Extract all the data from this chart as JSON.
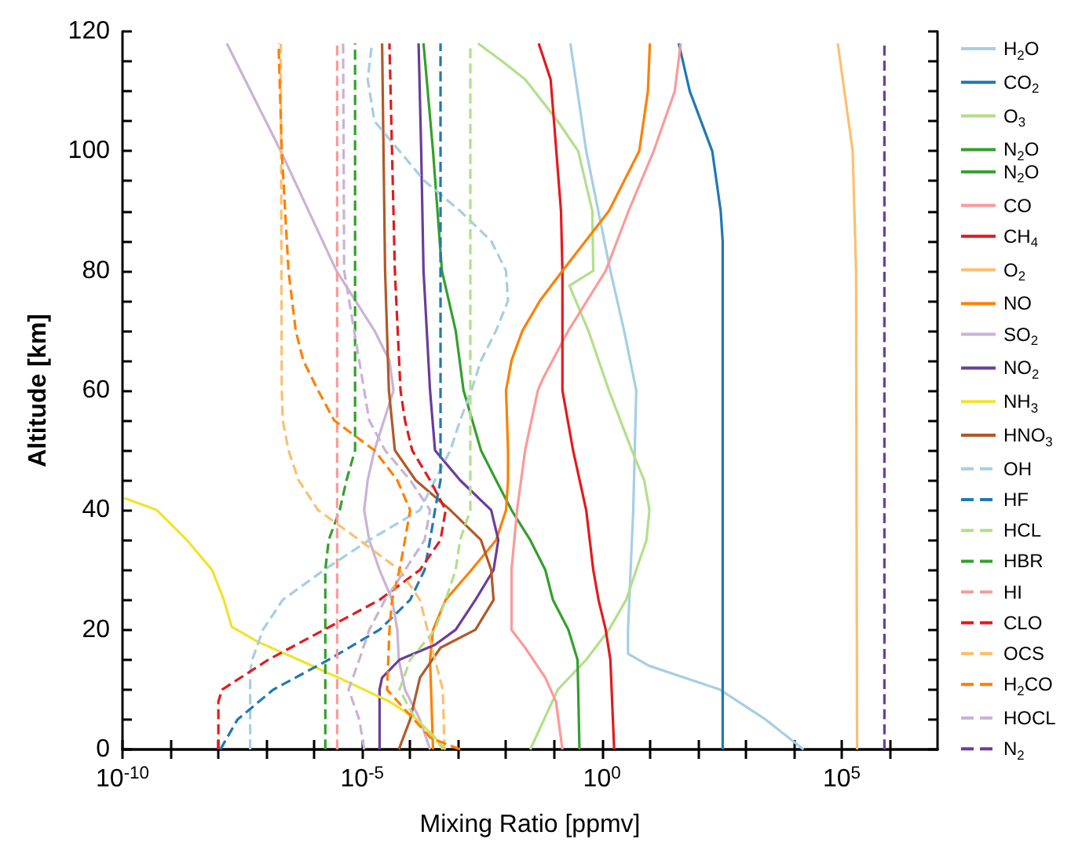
{
  "chart_data": {
    "type": "line",
    "xlabel": "Mixing Ratio [ppmv]",
    "ylabel": "Altitude [km]",
    "log": "x",
    "grid": false,
    "legend": "right",
    "xlim": [
      1e-10,
      10000000.0
    ],
    "ylim": [
      0,
      120
    ],
    "xticks": [
      {
        "value": 1e-10,
        "label": "10$^{-10}$"
      },
      {
        "value": 1e-09,
        "label": null
      },
      {
        "value": 1e-08,
        "label": null
      },
      {
        "value": 1e-07,
        "label": null
      },
      {
        "value": 1e-06,
        "label": null
      },
      {
        "value": 1e-05,
        "label": "10$^{-5}$"
      },
      {
        "value": 0.0001,
        "label": null
      },
      {
        "value": 0.001,
        "label": null
      },
      {
        "value": 0.01,
        "label": null
      },
      {
        "value": 0.1,
        "label": null
      },
      {
        "value": 1,
        "label": "10$^{0}$"
      },
      {
        "value": 10,
        "label": null
      },
      {
        "value": 100,
        "label": null
      },
      {
        "value": 1000,
        "label": null
      },
      {
        "value": 10000,
        "label": null
      },
      {
        "value": 100000,
        "label": "10$^{5}$"
      },
      {
        "value": 1000000,
        "label": null
      }
    ],
    "yticks": [
      0,
      {
        "value": 5,
        "label": null
      },
      {
        "value": 10,
        "label": null
      },
      {
        "value": 15,
        "label": null
      },
      20,
      {
        "value": 25,
        "label": null
      },
      {
        "value": 30,
        "label": null
      },
      {
        "value": 35,
        "label": null
      },
      40,
      {
        "value": 45,
        "label": null
      },
      {
        "value": 50,
        "label": null
      },
      {
        "value": 55,
        "label": null
      },
      60,
      {
        "value": 65,
        "label": null
      },
      {
        "value": 70,
        "label": null
      },
      {
        "value": 75,
        "label": null
      },
      80,
      {
        "value": 85,
        "label": null
      },
      {
        "value": 90,
        "label": null
      },
      {
        "value": 95,
        "label": null
      },
      100,
      {
        "value": 105,
        "label": null
      },
      {
        "value": 110,
        "label": null
      },
      {
        "value": 115,
        "label": null
      },
      120
    ],
    "series": [
      {
        "name": "H$_{2}$O",
        "color": "#a6cee3",
        "line_style": "solid",
        "values": [
          0,
          5,
          10,
          12,
          14,
          16,
          20,
          40,
          60,
          70,
          80,
          100,
          118
        ],
        "x": [
          16000.0,
          2600.0,
          290,
          52,
          9.5,
          3.5,
          3.5,
          4.5,
          5.2,
          2.9,
          1.5,
          0.47,
          0.22
        ]
      },
      {
        "name": "CO$_{2}$",
        "color": "#1f78b4",
        "line_style": "solid",
        "values": [
          0,
          85,
          90,
          100,
          110,
          118
        ],
        "x": [
          330,
          330,
          300,
          200,
          68,
          40
        ]
      },
      {
        "name": "O$_{3}$",
        "color": "#b2df8a",
        "line_style": "solid",
        "values": [
          0,
          10,
          15,
          20,
          25,
          30,
          35,
          40,
          45,
          50,
          60,
          70,
          77.5,
          80,
          90,
          100,
          105,
          112,
          115,
          118
        ],
        "x": [
          0.032,
          0.12,
          0.47,
          1.4,
          3.2,
          5.2,
          8.5,
          9.8,
          7.6,
          4.2,
          1.4,
          0.52,
          0.21,
          0.66,
          0.63,
          0.32,
          0.12,
          0.025,
          0.0083,
          0.0026
        ]
      },
      {
        "name": "N$_{2}$O",
        "color": "#33a02c",
        "line_style": "solid",
        "values": [
          0,
          10,
          15,
          20,
          25,
          30,
          35,
          40,
          45,
          50,
          60,
          70,
          80,
          100,
          118
        ],
        "x": [
          0.34,
          0.32,
          0.31,
          0.2,
          0.095,
          0.066,
          0.032,
          0.013,
          0.0062,
          0.003,
          0.0013,
          0.00089,
          0.00046,
          0.0003,
          0.00019
        ]
      },
      {
        "name": "N$_{2}$O",
        "color": "#33a02c",
        "line_style": "solid",
        "values": [
          null
        ],
        "x": [
          null
        ]
      },
      {
        "name": "CO",
        "color": "#fb9a99",
        "line_style": "solid",
        "values": [
          0,
          8,
          12,
          17,
          20,
          30,
          40,
          50,
          60,
          62,
          70,
          80,
          90,
          100,
          110,
          118
        ],
        "x": [
          0.15,
          0.11,
          0.066,
          0.025,
          0.013,
          0.013,
          0.017,
          0.025,
          0.046,
          0.059,
          0.2,
          1.2,
          3.6,
          12,
          33,
          44
        ]
      },
      {
        "name": "CH$_{4}$",
        "color": "#e31a1c",
        "line_style": "solid",
        "values": [
          0,
          15,
          20,
          25,
          30,
          40,
          50,
          60,
          80,
          90,
          105,
          112,
          118
        ],
        "x": [
          1.8,
          1.5,
          1.2,
          0.85,
          0.66,
          0.47,
          0.25,
          0.15,
          0.15,
          0.14,
          0.1,
          0.085,
          0.048
        ]
      },
      {
        "name": "O$_{2}$",
        "color": "#fdbf6f",
        "line_style": "solid",
        "values": [
          0,
          80,
          100,
          118
        ],
        "x": [
          210000.0,
          200000.0,
          170000.0,
          83000.0
        ]
      },
      {
        "name": "NO",
        "color": "#ff7f00",
        "line_style": "solid",
        "values": [
          0,
          15,
          20,
          25,
          30,
          35,
          40,
          45,
          50,
          60,
          65,
          70,
          75,
          80,
          90,
          100,
          110,
          118
        ],
        "x": [
          0.0003,
          0.00026,
          0.0003,
          0.00055,
          0.0019,
          0.0062,
          0.01,
          0.011,
          0.011,
          0.01,
          0.013,
          0.022,
          0.051,
          0.15,
          1.4,
          6.0,
          9.1,
          10
        ]
      },
      {
        "name": "SO$_{2}$",
        "color": "#cab2d6",
        "line_style": "solid",
        "values": [
          0,
          5,
          10,
          15,
          20,
          25,
          30,
          35,
          40,
          45,
          50,
          60,
          65,
          70,
          80,
          100,
          118
        ],
        "x": [
          0.00026,
          0.00016,
          7.8e-05,
          5.8e-05,
          5.4e-05,
          4.2e-05,
          2.3e-05,
          1.4e-05,
          1.1e-05,
          1.3e-05,
          1.8e-05,
          4.5e-05,
          3.7e-05,
          1.8e-05,
          2.9e-06,
          2e-07,
          1.5e-08
        ]
      },
      {
        "name": "NO$_{2}$",
        "color": "#6a3d9a",
        "line_style": "solid",
        "values": [
          0,
          10,
          12,
          15,
          17.5,
          20,
          25,
          30,
          35,
          40,
          45,
          50,
          60,
          80,
          100,
          118
        ],
        "x": [
          2.3e-05,
          2.3e-05,
          2.6e-05,
          6e-05,
          0.00033,
          0.00089,
          0.0023,
          0.0055,
          0.0069,
          0.0049,
          0.0011,
          0.00033,
          0.00026,
          0.00019,
          0.00017,
          0.00015
        ]
      },
      {
        "name": "NH$_{3}$",
        "color": "#f2e22e",
        "line_style": "solid",
        "values": [
          0,
          2,
          5,
          8,
          12,
          15,
          18,
          20.5,
          25,
          30,
          35,
          40,
          42
        ],
        "x": [
          0.00048,
          0.00033,
          0.00014,
          3.7e-05,
          3.2e-06,
          4.7e-07,
          6.6e-08,
          1.9e-08,
          1.3e-08,
          7.4e-09,
          2.2e-09,
          5.2e-10,
          1.1e-10
        ]
      },
      {
        "name": "HNO$_{3}$",
        "color": "#b15928",
        "line_style": "solid",
        "values": [
          0,
          5,
          12,
          17,
          20,
          25,
          30,
          35,
          40,
          45,
          50,
          60,
          80,
          118
        ],
        "x": [
          5.8e-05,
          0.0001,
          0.00016,
          0.00043,
          0.0023,
          0.0055,
          0.0049,
          0.003,
          0.00069,
          0.00013,
          4.8e-05,
          3.6e-05,
          3e-05,
          2.6e-05
        ]
      },
      {
        "name": "OH",
        "color": "#a6cee3",
        "line_style": "dashed",
        "values": [
          0,
          13,
          15,
          20,
          25,
          30,
          35,
          40,
          45,
          50,
          55,
          60,
          65,
          70,
          75,
          80,
          85,
          90,
          95,
          100,
          105,
          112,
          118
        ],
        "x": [
          4.6e-08,
          4.6e-08,
          5.1e-08,
          8.5e-08,
          2.2e-07,
          1.6e-06,
          1.4e-05,
          0.00016,
          0.00033,
          0.00069,
          0.0011,
          0.0019,
          0.003,
          0.0062,
          0.011,
          0.01,
          0.0049,
          0.0011,
          0.0002,
          6e-05,
          1.8e-05,
          1.3e-05,
          1.6e-05
        ]
      },
      {
        "name": "HF",
        "color": "#1f78b4",
        "line_style": "dashed",
        "values": [
          0,
          5,
          10,
          15,
          20,
          25,
          30,
          35,
          40,
          45,
          118
        ],
        "x": [
          1.1e-08,
          2.5e-08,
          1.4e-07,
          2e-06,
          2.3e-05,
          0.0001,
          0.0002,
          0.00026,
          0.00033,
          0.00043,
          0.00043
        ]
      },
      {
        "name": "HCL",
        "color": "#b2df8a",
        "line_style": "dashed",
        "values": [
          0,
          5,
          10,
          15,
          20,
          25,
          30,
          35,
          40,
          118
        ],
        "x": [
          0.00055,
          0.00013,
          6e-05,
          0.0001,
          0.00033,
          0.00055,
          0.00089,
          0.0011,
          0.0018,
          0.0018
        ]
      },
      {
        "name": "HBR",
        "color": "#33a02c",
        "line_style": "dashed",
        "values": [
          0,
          30,
          35,
          40,
          45,
          50,
          118
        ],
        "x": [
          1.7e-06,
          1.7e-06,
          2e-06,
          3.4e-06,
          4.7e-06,
          7.1e-06,
          7.1e-06
        ]
      },
      {
        "name": "HI",
        "color": "#fb9a99",
        "line_style": "dashed",
        "values": [
          0,
          118
        ],
        "x": [
          3e-06,
          3e-06
        ]
      },
      {
        "name": "CLO",
        "color": "#e31a1c",
        "line_style": "dashed",
        "values": [
          0,
          8,
          10,
          15,
          20,
          25,
          30,
          35,
          40,
          45,
          50,
          55,
          60,
          80,
          118
        ],
        "x": [
          1e-08,
          1e-08,
          1.2e-08,
          1.1e-07,
          1.6e-06,
          2.3e-05,
          0.00016,
          0.00043,
          0.00055,
          0.00026,
          0.00011,
          7.8e-05,
          6.3e-05,
          4.8e-05,
          3.7e-05
        ]
      },
      {
        "name": "OCS",
        "color": "#fdbf6f",
        "line_style": "dashed",
        "values": [
          0,
          10,
          15,
          20,
          25,
          30,
          35,
          40,
          45,
          50,
          55,
          60,
          118
        ],
        "x": [
          0.00052,
          0.00048,
          0.00033,
          0.00023,
          0.00016,
          6e-05,
          8.7e-06,
          1.2e-06,
          4.7e-07,
          2.9e-07,
          2.2e-07,
          2.1e-07,
          2e-07
        ]
      },
      {
        "name": "H$_{2}$CO",
        "color": "#ff7f00",
        "line_style": "dashed",
        "values": [
          0,
          2,
          10,
          20,
          25,
          30,
          35,
          40,
          45,
          50,
          55,
          60,
          65,
          70,
          80,
          100,
          118
        ],
        "x": [
          0.0011,
          0.00026,
          3.3e-05,
          3.7e-05,
          4.2e-05,
          6e-05,
          7.8e-05,
          0.0001,
          5.4e-05,
          1.8e-05,
          2.6e-06,
          1.2e-06,
          5.9e-07,
          4.1e-07,
          2.9e-07,
          2.1e-07,
          1.8e-07
        ]
      },
      {
        "name": "HOCL",
        "color": "#cab2d6",
        "line_style": "dashed",
        "values": [
          0,
          5,
          10,
          15,
          20,
          25,
          30,
          35,
          40,
          45,
          50,
          55,
          60,
          80,
          118
        ],
        "x": [
          1.1e-05,
          8.7e-06,
          5.2e-06,
          8.7e-06,
          1.4e-05,
          3e-05,
          7.8e-05,
          0.0002,
          0.00026,
          0.0001,
          3e-05,
          1.4e-05,
          1.1e-05,
          4.2e-06,
          4e-06
        ]
      },
      {
        "name": "N$_{2}$",
        "color": "#6a3d9a",
        "line_style": "dashed",
        "values": [
          0,
          118
        ],
        "x": [
          780000.0,
          780000.0
        ]
      }
    ]
  }
}
